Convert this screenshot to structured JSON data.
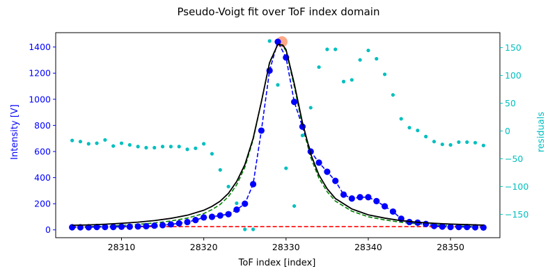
{
  "chart_data": {
    "type": "line",
    "title": "Pseudo-Voigt fit over ToF index domain",
    "xlabel": "ToF index [index]",
    "ylabel": "Intensity [V]",
    "y2label": "residuals",
    "xlim": [
      28302,
      28356
    ],
    "ylim": [
      -60,
      1510
    ],
    "y2lim": [
      -192,
      177
    ],
    "xticks": [
      28310,
      28320,
      28330,
      28340,
      28350
    ],
    "yticks": [
      0,
      200,
      400,
      600,
      800,
      1000,
      1200,
      1400
    ],
    "y2ticks": [
      -150,
      -100,
      -50,
      0,
      50,
      100,
      150
    ],
    "colors": {
      "data": "#0000ff",
      "fit": "#000000",
      "component": "#008000",
      "background": "#ff0000",
      "residuals": "#00bfbf",
      "peak_marker": "#ffa07a",
      "left_axis": "#0000ff",
      "right_axis": "#00bfbf"
    },
    "grid": false,
    "legend": "none",
    "series": [
      {
        "role": "measured",
        "style": "blue dashed line with circle markers",
        "x": [
          28304,
          28305,
          28306,
          28307,
          28308,
          28309,
          28310,
          28311,
          28312,
          28313,
          28314,
          28315,
          28316,
          28317,
          28318,
          28319,
          28320,
          28321,
          28322,
          28323,
          28324,
          28325,
          28326,
          28327,
          28328,
          28329,
          28330,
          28331,
          28332,
          28333,
          28334,
          28335,
          28336,
          28337,
          28338,
          28339,
          28340,
          28341,
          28342,
          28343,
          28344,
          28345,
          28346,
          28347,
          28348,
          28349,
          28350,
          28351,
          28352,
          28353,
          28354
        ],
        "y": [
          20,
          20,
          20,
          22,
          22,
          22,
          24,
          24,
          26,
          28,
          32,
          36,
          42,
          50,
          60,
          75,
          95,
          100,
          110,
          120,
          155,
          200,
          350,
          760,
          1220,
          1440,
          1320,
          980,
          790,
          600,
          515,
          445,
          375,
          270,
          240,
          250,
          250,
          220,
          180,
          140,
          85,
          60,
          55,
          45,
          30,
          25,
          22,
          22,
          22,
          20,
          18
        ]
      },
      {
        "role": "fit",
        "style": "black solid line",
        "x": [
          28304,
          28306,
          28308,
          28310,
          28312,
          28314,
          28316,
          28318,
          28320,
          28321,
          28322,
          28323,
          28324,
          28325,
          28326,
          28327,
          28328,
          28329,
          28329.6,
          28330,
          28331,
          28332,
          28333,
          28334,
          28335,
          28336,
          28338,
          28340,
          28342,
          28344,
          28346,
          28348,
          28350,
          28352,
          28354
        ],
        "y": [
          35,
          38,
          43,
          50,
          59,
          71,
          88,
          112,
          150,
          180,
          220,
          280,
          370,
          500,
          700,
          980,
          1280,
          1420,
          1415,
          1380,
          1120,
          820,
          580,
          420,
          315,
          240,
          160,
          115,
          90,
          70,
          58,
          50,
          44,
          40,
          36
        ]
      },
      {
        "role": "component",
        "style": "green dashed line",
        "x": [
          28304,
          28306,
          28308,
          28310,
          28312,
          28314,
          28316,
          28318,
          28320,
          28321,
          28322,
          28323,
          28324,
          28325,
          28326,
          28327,
          28328,
          28329,
          28329.6,
          28330,
          28331,
          28332,
          28333,
          28334,
          28335,
          28336,
          28338,
          28340,
          28342,
          28344,
          28346,
          28348,
          28350,
          28352,
          28354
        ],
        "y": [
          22,
          24,
          28,
          34,
          42,
          53,
          68,
          90,
          125,
          155,
          195,
          255,
          345,
          480,
          690,
          980,
          1285,
          1420,
          1410,
          1370,
          1100,
          795,
          555,
          395,
          292,
          220,
          143,
          100,
          76,
          58,
          46,
          38,
          32,
          28,
          25
        ]
      },
      {
        "role": "background",
        "style": "red dashed line",
        "x": [
          28304,
          28354
        ],
        "y": [
          25,
          25
        ]
      }
    ],
    "residuals": {
      "style": "cyan dots on right axis",
      "x": [
        28304,
        28305,
        28306,
        28307,
        28308,
        28309,
        28310,
        28311,
        28312,
        28313,
        28314,
        28315,
        28316,
        28317,
        28318,
        28319,
        28320,
        28321,
        28322,
        28323,
        28324,
        28325,
        28326,
        28327,
        28328,
        28329,
        28330,
        28331,
        28332,
        28333,
        28334,
        28335,
        28336,
        28337,
        28338,
        28339,
        28340,
        28341,
        28342,
        28343,
        28344,
        28345,
        28346,
        28347,
        28348,
        28349,
        28350,
        28351,
        28352,
        28353,
        28354
      ],
      "y": [
        -17,
        -19,
        -23,
        -22,
        -16,
        -27,
        -22,
        -25,
        -28,
        -30,
        -30,
        -28,
        -28,
        -28,
        -33,
        -31,
        -23,
        -41,
        -70,
        -100,
        -130,
        -177,
        -177,
        -1,
        162,
        83,
        -67,
        -135,
        -8,
        42,
        115,
        147,
        147,
        89,
        92,
        128,
        145,
        130,
        102,
        65,
        22,
        6,
        1,
        -10,
        -19,
        -24,
        -25,
        -20,
        -20,
        -21,
        -26
      ]
    },
    "peak_marker": {
      "x": 28329.5,
      "y": 1440
    }
  }
}
